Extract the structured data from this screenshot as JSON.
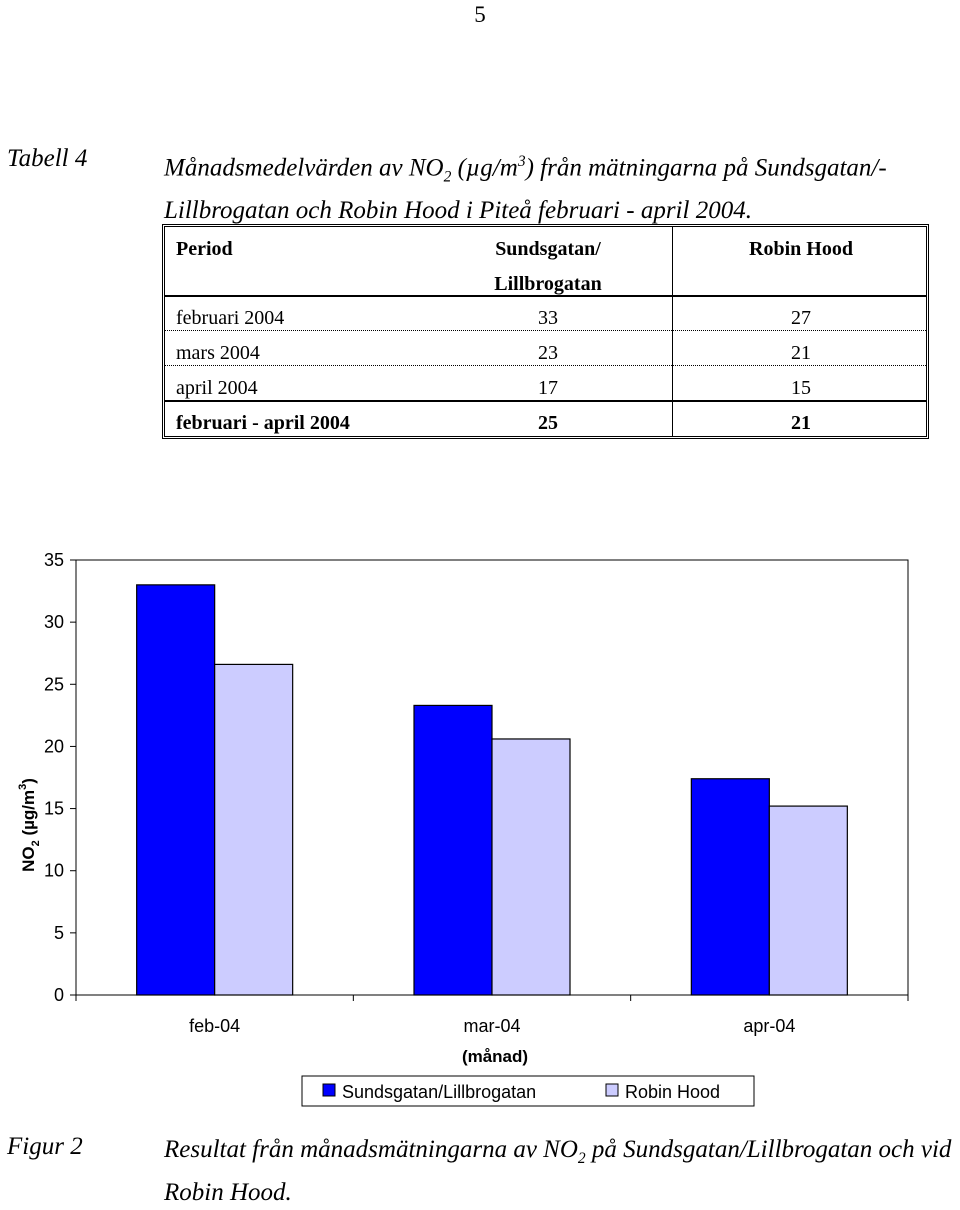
{
  "page_number": "5",
  "table_caption": {
    "label": "Tabell 4",
    "text_before": "Månadsmedelvärden av NO",
    "sub": "2",
    "text_mid": " (µg/m",
    "sup": "3",
    "text_after": ") från mätningarna på Sundsgatan/-Lillbrogatan och Robin Hood  i Piteå februari - april 2004."
  },
  "table": {
    "headers": [
      "Period",
      "Sundsgatan/ Lillbrogatan",
      "Robin Hood"
    ],
    "header_lines": {
      "col2_line1": "Sundsgatan/",
      "col2_line2": "Lillbrogatan"
    },
    "rows": [
      [
        "februari 2004",
        "33",
        "27"
      ],
      [
        "mars 2004",
        "23",
        "21"
      ],
      [
        "april 2004",
        "17",
        "15"
      ]
    ],
    "total_row": [
      "februari - april 2004",
      "25",
      "21"
    ]
  },
  "chart_data": {
    "type": "bar",
    "categories": [
      "feb-04",
      "mar-04",
      "apr-04"
    ],
    "series": [
      {
        "name": "Sundsgatan/Lillbrogatan",
        "values": [
          33,
          23.3,
          17.4
        ],
        "color": "#0000ff"
      },
      {
        "name": "Robin Hood",
        "values": [
          26.6,
          20.6,
          15.2
        ],
        "color": "#ccccff"
      }
    ],
    "xlabel": "(månad)",
    "ylabel_parts": {
      "base": "NO",
      "sub": "2",
      "unit": " (µg/m",
      "sup": "3",
      "close": ")"
    },
    "ylim": [
      0,
      35
    ],
    "yticks": [
      "0",
      "5",
      "10",
      "15",
      "20",
      "25",
      "30",
      "35"
    ],
    "grid": false,
    "legend_position": "bottom"
  },
  "figure_caption": {
    "label": "Figur 2",
    "text_before": "Resultat från månadsmätningarna av NO",
    "sub": "2",
    "text_after": " på Sundsgatan/Lillbrogatan och vid Robin Hood."
  }
}
